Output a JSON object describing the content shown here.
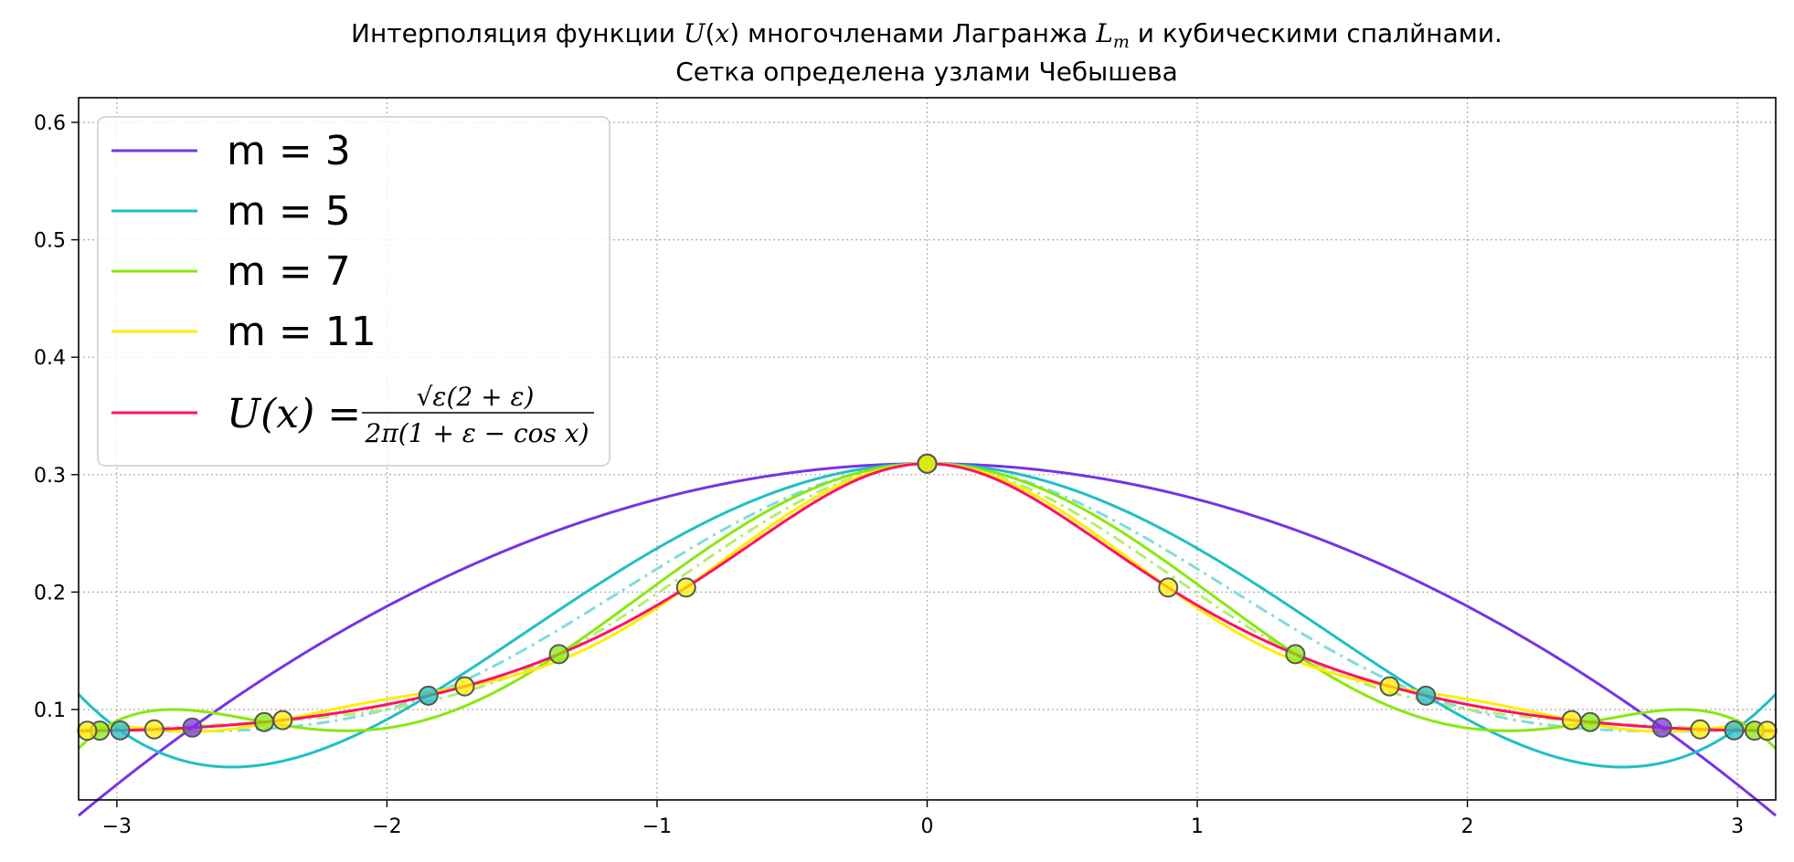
{
  "chart_data": {
    "type": "line",
    "title": "Интерполяция функции U(x) многочленами Лагранжа L_m и кубическими спалйнами.",
    "subtitle": "Сетка определена узлами Чебышева",
    "title_parts": {
      "p1": "Интерполяция функции ",
      "p2": "U",
      "p3": "(",
      "p4": "x",
      "p5": ") многочленами Лагранжа ",
      "p6": "L",
      "p7": "m",
      "p8": " и кубическими спалйнами."
    },
    "xlim": [
      -3.1416,
      3.1416
    ],
    "ylim": [
      0.023,
      0.621
    ],
    "x_ticks": [
      -3,
      -2,
      -1,
      0,
      1,
      2,
      3
    ],
    "x_tick_labels": [
      "−3",
      "−2",
      "−1",
      "0",
      "1",
      "2",
      "3"
    ],
    "y_ticks": [
      0.1,
      0.2,
      0.3,
      0.4,
      0.5,
      0.6
    ],
    "y_tick_labels": [
      "0.1",
      "0.2",
      "0.3",
      "0.4",
      "0.5",
      "0.6"
    ],
    "grid": true,
    "legend_position": "upper-left",
    "legend": [
      {
        "label": "m = 3",
        "color": "#7733e6"
      },
      {
        "label": "m = 5",
        "color": "#1fbfc6"
      },
      {
        "label": "m = 7",
        "color": "#88e80f"
      },
      {
        "label": "m = 11",
        "color": "#ffee00"
      }
    ],
    "function_legend": {
      "lhs": "U(x) =",
      "numerator": "√ε(2 + ε)",
      "denominator": "2π(1 + ε − cos x)",
      "color": "#ff1166"
    },
    "function_params": {
      "epsilon": 0.72
    },
    "series": [
      {
        "name": "m = 3",
        "kind": "lagrange",
        "color": "#7733e6",
        "nodes_x": [
          -2.7207,
          0,
          2.7207
        ]
      },
      {
        "name": "m = 5",
        "kind": "lagrange",
        "color": "#1fbfc6",
        "nodes_x": [
          -2.9878,
          -1.8466,
          0,
          1.8466,
          2.9878
        ]
      },
      {
        "name": "m = 7",
        "kind": "lagrange",
        "color": "#88e80f",
        "nodes_x": [
          -3.0631,
          -2.4546,
          -1.3632,
          0,
          1.3632,
          2.4546,
          3.0631
        ]
      },
      {
        "name": "m = 11",
        "kind": "lagrange",
        "color": "#ffee00",
        "nodes_x": [
          -3.1097,
          -2.8618,
          -2.3861,
          -1.7121,
          -0.8924,
          0,
          0.8924,
          1.7121,
          2.3861,
          2.8618,
          3.1097
        ]
      },
      {
        "name": "",
        "kind": "spline",
        "color": "#7fdcdc",
        "source": "m = 5",
        "nodes_x": [
          -2.9878,
          -1.8466,
          0,
          1.8466,
          2.9878
        ]
      },
      {
        "name": "",
        "kind": "spline",
        "color": "#b5ee6e",
        "source": "m = 7",
        "nodes_x": [
          -3.0631,
          -2.4546,
          -1.3632,
          0,
          1.3632,
          2.4546,
          3.0631
        ]
      },
      {
        "name": "",
        "kind": "spline",
        "color": "#fff27a",
        "source": "m = 11",
        "nodes_x": [
          -3.1097,
          -2.8618,
          -2.3861,
          -1.7121,
          -0.8924,
          0,
          0.8924,
          1.7121,
          2.3861,
          2.8618,
          3.1097
        ]
      },
      {
        "name": "U(x)",
        "kind": "function",
        "color": "#ff1166"
      }
    ]
  }
}
